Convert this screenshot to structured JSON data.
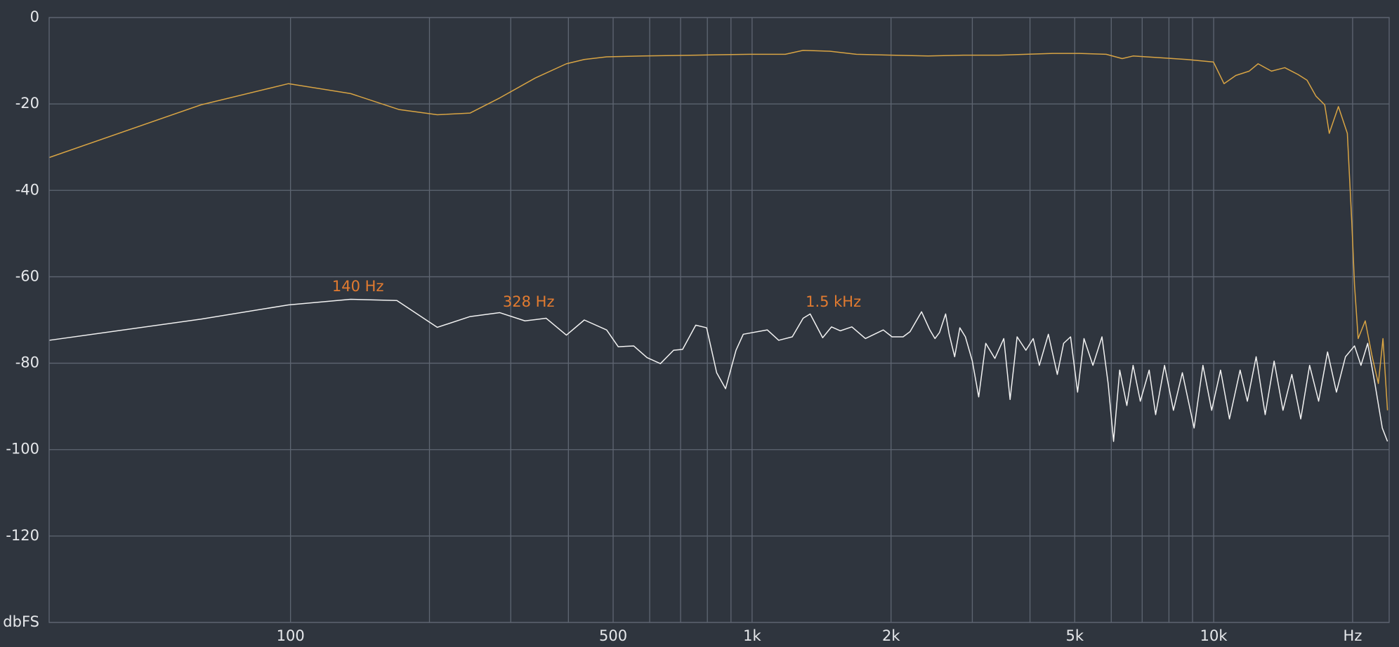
{
  "chart_data": {
    "type": "line",
    "xscale": "log",
    "grid": true,
    "xlim": [
      30,
      24000
    ],
    "ylim": [
      -140,
      0
    ],
    "yticks": [
      0,
      -20,
      -40,
      -60,
      -80,
      -100,
      -120,
      {
        "value": -140,
        "label": "dbFS"
      }
    ],
    "xticks": [
      100,
      500,
      {
        "value": 1000,
        "label": "1k"
      },
      {
        "value": 2000,
        "label": "2k"
      },
      {
        "value": 5000,
        "label": "5k"
      },
      {
        "value": 10000,
        "label": "10k"
      },
      {
        "value": 20000,
        "label": "Hz"
      }
    ],
    "xgrid_minor": [
      200,
      300,
      400,
      600,
      700,
      800,
      900,
      3000,
      4000,
      6000,
      7000,
      8000,
      9000
    ],
    "annotations": [
      {
        "text": "140 Hz",
        "x": 140,
        "y": -65,
        "color": "#e27b30"
      },
      {
        "text": "328 Hz",
        "x": 328,
        "y": -68.5,
        "color": "#e27b30"
      },
      {
        "text": "1.5 kHz",
        "x": 1500,
        "y": -68.5,
        "color": "#e27b30"
      }
    ],
    "series": [
      {
        "color": "#d8a444",
        "x": [
          30,
          64,
          99,
          135,
          172,
          208,
          245,
          284,
          339,
          396,
          433,
          484,
          578,
          755,
          987,
          1180,
          1290,
          1473,
          1683,
          2010,
          2405,
          2871,
          3430,
          3919,
          4480,
          5119,
          5851,
          6336,
          6690,
          7650,
          8740,
          9990,
          10530,
          11170,
          11940,
          12480,
          13340,
          14260,
          15240,
          15930,
          16660,
          17400,
          17800,
          18630,
          19480,
          19920,
          20190,
          20560,
          21300,
          22050,
          22740,
          23270,
          23800
        ],
        "values": [
          -32.4,
          -20.2,
          -15.3,
          -17.6,
          -21.3,
          -22.5,
          -22.1,
          -18.6,
          -14.0,
          -10.7,
          -9.7,
          -9.1,
          -8.9,
          -8.7,
          -8.5,
          -8.5,
          -7.6,
          -7.8,
          -8.5,
          -8.7,
          -8.9,
          -8.7,
          -8.7,
          -8.5,
          -8.3,
          -8.3,
          -8.5,
          -9.5,
          -8.9,
          -9.3,
          -9.7,
          -10.3,
          -15.3,
          -13.4,
          -12.4,
          -10.7,
          -12.4,
          -11.6,
          -13.2,
          -14.5,
          -18.2,
          -20.2,
          -26.8,
          -20.6,
          -26.8,
          -47.5,
          -61.9,
          -74.3,
          -70.2,
          -78.5,
          -84.7,
          -74.3,
          -90.9
        ]
      },
      {
        "color": "#f2f2f2",
        "x": [
          30,
          64,
          99,
          135,
          170,
          208,
          245,
          284,
          322,
          358,
          396,
          433,
          484,
          513,
          554,
          592,
          633,
          676,
          707,
          755,
          797,
          838,
          876,
          923,
          957,
          1079,
          1142,
          1222,
          1290,
          1336,
          1422,
          1486,
          1553,
          1645,
          1760,
          1924,
          2010,
          2124,
          2199,
          2329,
          2427,
          2490,
          2547,
          2626,
          2673,
          2747,
          2819,
          2898,
          3000,
          3097,
          3208,
          3357,
          3510,
          3622,
          3751,
          3919,
          4065,
          4191,
          4384,
          4584,
          4731,
          4898,
          5072,
          5237,
          5475,
          5728,
          5907,
          6069,
          6258,
          6485,
          6690,
          6935,
          7249,
          7486,
          7827,
          8182,
          8554,
          9070,
          9478,
          9902,
          10350,
          10820,
          11410,
          11830,
          12360,
          12930,
          13520,
          14130,
          14770,
          15440,
          16140,
          16880,
          17650,
          18450,
          19300,
          20190,
          20850,
          21560,
          22350,
          23190,
          23800
        ],
        "values": [
          -74.7,
          -69.8,
          -66.5,
          -65.2,
          -65.5,
          -71.7,
          -69.2,
          -68.3,
          -70.2,
          -69.6,
          -73.5,
          -70.0,
          -72.3,
          -76.2,
          -76.0,
          -78.7,
          -80.1,
          -77.0,
          -76.8,
          -71.2,
          -71.8,
          -82.2,
          -85.9,
          -77.0,
          -73.3,
          -72.3,
          -74.7,
          -73.9,
          -69.6,
          -68.6,
          -74.1,
          -71.6,
          -72.5,
          -71.6,
          -74.3,
          -72.3,
          -73.9,
          -73.9,
          -72.7,
          -68.1,
          -72.3,
          -74.3,
          -72.9,
          -68.6,
          -73.3,
          -78.5,
          -71.8,
          -73.9,
          -79.5,
          -87.8,
          -75.4,
          -78.9,
          -74.3,
          -88.4,
          -73.9,
          -77.0,
          -74.3,
          -80.5,
          -73.3,
          -82.6,
          -75.4,
          -73.9,
          -86.7,
          -74.3,
          -80.5,
          -73.9,
          -84.7,
          -98.1,
          -81.6,
          -89.8,
          -80.5,
          -88.8,
          -81.6,
          -91.9,
          -80.5,
          -90.9,
          -82.2,
          -95.0,
          -80.5,
          -90.9,
          -81.6,
          -92.9,
          -81.6,
          -88.8,
          -78.5,
          -91.9,
          -79.5,
          -90.9,
          -82.6,
          -92.9,
          -80.5,
          -88.8,
          -77.4,
          -86.7,
          -78.5,
          -76.0,
          -80.5,
          -75.4,
          -84.7,
          -95.0,
          -98.1
        ]
      }
    ]
  }
}
